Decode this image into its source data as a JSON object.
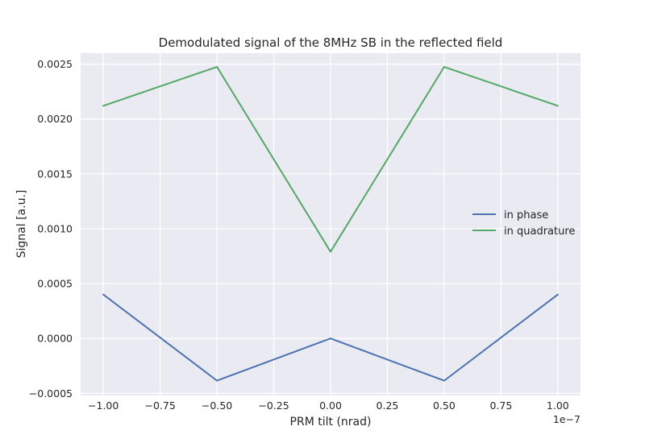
{
  "chart_data": {
    "type": "line",
    "title": "Demodulated signal of the 8MHz SB in the reflected field",
    "xlabel": "PRM tilt (nrad)",
    "ylabel": "Signal [a.u.]",
    "x_offset_label": "1e−7",
    "x": [
      -1e-07,
      -5e-08,
      0.0,
      5e-08,
      1e-07
    ],
    "xlim": [
      -1.1e-07,
      1.1e-07
    ],
    "ylim": [
      -0.00052,
      0.0026
    ],
    "xticks": [
      -1e-07,
      -7.5e-08,
      -5e-08,
      -2.5e-08,
      0.0,
      2.5e-08,
      5e-08,
      7.5e-08,
      1e-07
    ],
    "xtick_labels": [
      "−1.00",
      "−0.75",
      "−0.50",
      "−0.25",
      "0.00",
      "0.25",
      "0.50",
      "0.75",
      "1.00"
    ],
    "yticks": [
      -0.0005,
      0.0,
      0.0005,
      0.001,
      0.0015,
      0.002,
      0.0025
    ],
    "ytick_labels": [
      "−0.0005",
      "0.0000",
      "0.0005",
      "0.0010",
      "0.0015",
      "0.0020",
      "0.0025"
    ],
    "grid": true,
    "legend_position": "center-right",
    "series": [
      {
        "name": "in phase",
        "color": "#4c72b0",
        "values": [
          0.0004,
          -0.000385,
          0.0,
          -0.000385,
          0.0004
        ]
      },
      {
        "name": "in quadrature",
        "color": "#55a868",
        "values": [
          0.00212,
          0.002475,
          0.00079,
          0.002475,
          0.00212
        ]
      }
    ]
  }
}
